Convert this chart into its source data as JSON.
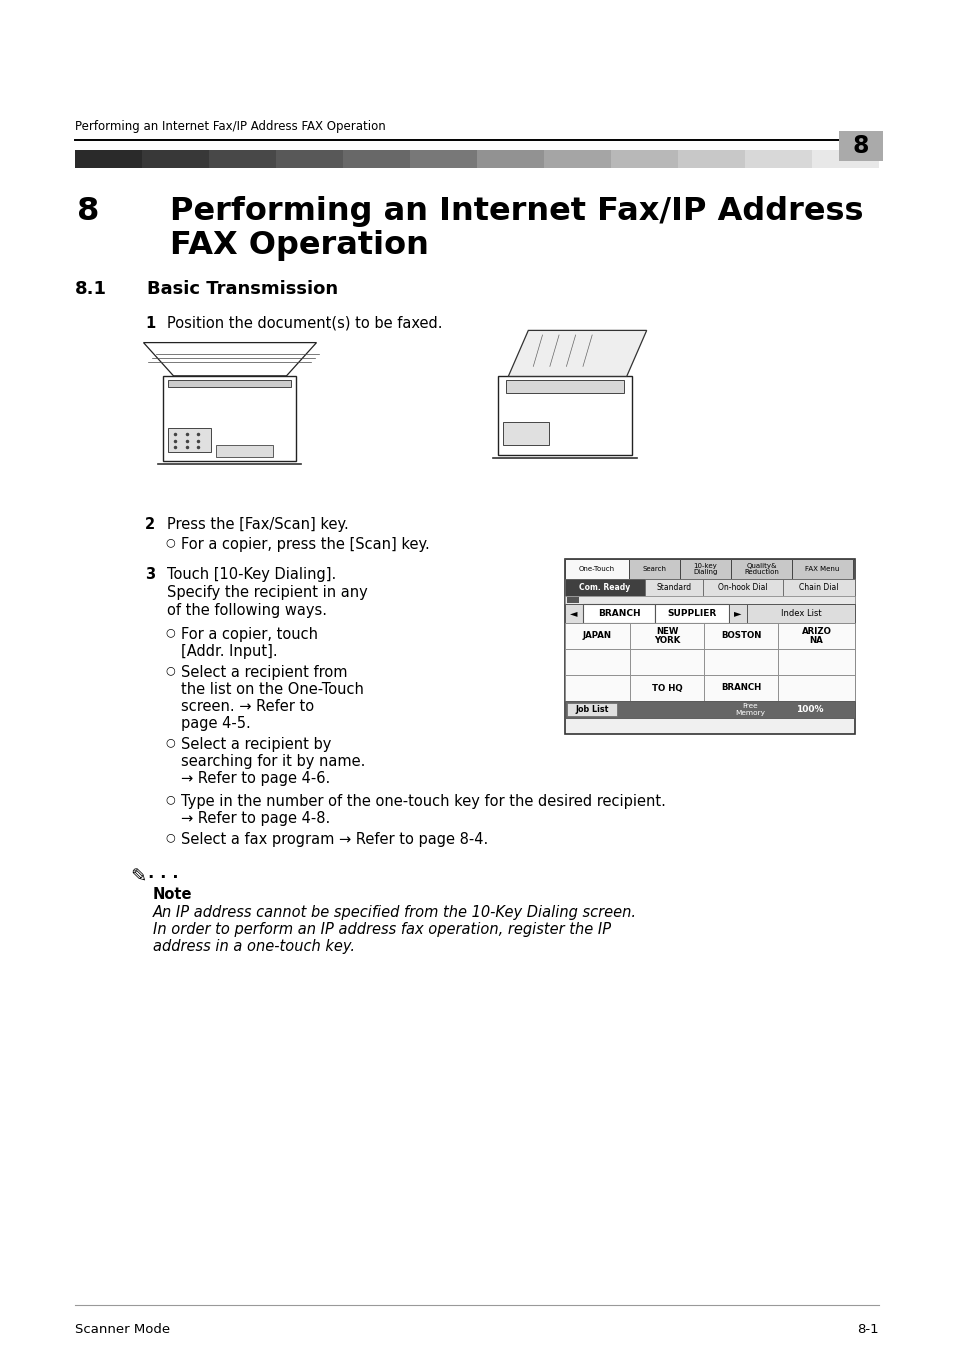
{
  "bg_color": "#ffffff",
  "header_text": "Performing an Internet Fax/IP Address FAX Operation",
  "header_number": "8",
  "chapter_number": "8",
  "chapter_title_line1": "Performing an Internet Fax/IP Address",
  "chapter_title_line2": "FAX Operation",
  "section_number": "8.1",
  "section_title": "Basic Transmission",
  "step1_text": "Position the document(s) to be faxed.",
  "step2_text": "Press the [Fax/Scan] key.",
  "step2_sub": "For a copier, press the [Scan] key.",
  "step3_line1": "Touch [10-Key Dialing].",
  "step3_line2": "Specify the recipient in any",
  "step3_line3": "of the following ways.",
  "bullet1_line1": "For a copier, touch",
  "bullet1_line2": "[Addr. Input].",
  "bullet2_line1": "Select a recipient from",
  "bullet2_line2": "the list on the One-Touch",
  "bullet2_line3": "screen. → Refer to",
  "bullet2_line4": "page 4-5.",
  "bullet3_line1": "Select a recipient by",
  "bullet3_line2": "searching for it by name.",
  "bullet3_line3": "→ Refer to page 4-6.",
  "bullet4_line1": "Type in the number of the one-touch key for the desired recipient.",
  "bullet4_line2": "→ Refer to page 4-8.",
  "bullet5": "Select a fax program → Refer to page 8-4.",
  "note_title": "Note",
  "note_line1": "An IP address cannot be specified from the 10-Key Dialing screen.",
  "note_line2": "In order to perform an IP address fax operation, register the IP",
  "note_line3": "address in a one-touch key.",
  "footer_left": "Scanner Mode",
  "footer_right": "8-1",
  "gradient_colors": [
    "#2a2a2a",
    "#383838",
    "#484848",
    "#585858",
    "#686868",
    "#787878",
    "#929292",
    "#a5a5a5",
    "#b8b8b8",
    "#c8c8c8",
    "#d8d8d8",
    "#e8e8e8"
  ],
  "ML": 75,
  "MR": 879,
  "PH": 1351
}
